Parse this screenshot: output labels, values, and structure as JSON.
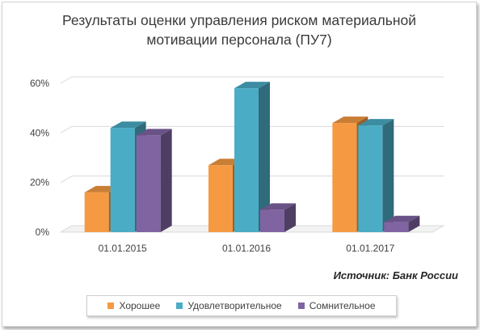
{
  "chart_data": {
    "type": "bar",
    "title_lines": [
      "Результаты оценки управления риском материальной",
      "мотивации персонала (ПУ7)"
    ],
    "categories": [
      "01.01.2015",
      "01.01.2016",
      "01.01.2017"
    ],
    "series": [
      {
        "name": "Хорошее",
        "values": [
          16,
          27,
          44
        ],
        "color": "#f59a42"
      },
      {
        "name": "Удовлетворительное",
        "values": [
          42,
          58,
          43
        ],
        "color": "#4bacc6"
      },
      {
        "name": "Сомнительное",
        "values": [
          39,
          9,
          4
        ],
        "color": "#8064a2"
      }
    ],
    "yticks": [
      "0%",
      "20%",
      "40%",
      "60%"
    ],
    "ylim": [
      0,
      60
    ],
    "source": "Источник: Банк России",
    "legend_position": "bottom",
    "grid": true
  }
}
